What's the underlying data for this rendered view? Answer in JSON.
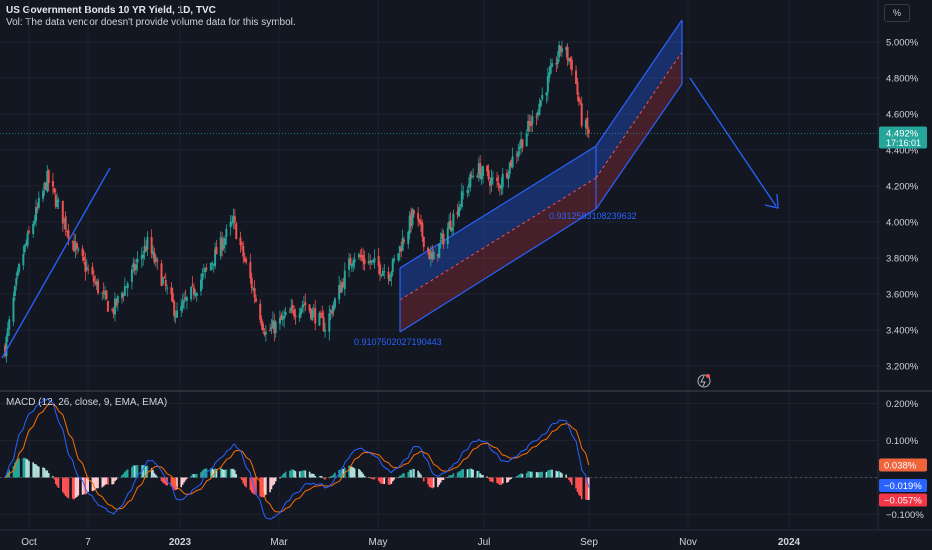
{
  "header": {
    "title": "US Government Bonds 10 YR Yield, 1D, TVC",
    "volume_note": "Vol: The data vendor doesn't provide volume data for this symbol."
  },
  "scale_button": "%",
  "price_axis": {
    "ticks": [
      "5.000%",
      "4.800%",
      "4.600%",
      "4.400%",
      "4.200%",
      "4.000%",
      "3.800%",
      "3.600%",
      "3.400%",
      "3.200%"
    ],
    "ticks_values": [
      5.0,
      4.8,
      4.6,
      4.4,
      4.2,
      4.0,
      3.8,
      3.6,
      3.4,
      3.2
    ],
    "last_price": "4.492%",
    "last_price_value": 4.492,
    "countdown": "17:16:01"
  },
  "time_axis": {
    "labels": [
      "Oct",
      "7",
      "2023",
      "Mar",
      "May",
      "Jul",
      "Sep",
      "Nov",
      "2024"
    ],
    "bold": [
      false,
      false,
      true,
      false,
      false,
      false,
      false,
      false,
      true
    ]
  },
  "macd": {
    "title": "MACD (12, 26, close, 9, EMA, EMA)",
    "ticks": [
      "0.200%",
      "0.100%",
      "−0.100%"
    ],
    "ticks_values": [
      0.2,
      0.1,
      -0.1
    ],
    "histogram_label": "0.038%",
    "macd_label": "−0.019%",
    "signal_label": "−0.057%",
    "histogram_value": 0.038,
    "macd_value": -0.019,
    "signal_value": -0.057
  },
  "annotations": {
    "channel1_label": "0.9107502027190443",
    "channel2_label": "0.9312583108239632"
  },
  "colors": {
    "background": "#131722",
    "up": "#26a69a",
    "down": "#ef5350",
    "drawing": "#2962ff",
    "macd_line": "#2962ff",
    "signal_line": "#ff6d00",
    "axis_text": "#d1d4dc"
  },
  "chart_data": [
    {
      "type": "candlestick",
      "symbol": "US Government Bonds 10 YR Yield",
      "interval": "1D",
      "ylim": [
        3.15,
        5.15
      ],
      "approx_path": [
        {
          "date": "2022-09-20",
          "close": 3.3
        },
        {
          "date": "2022-10-01",
          "close": 3.78
        },
        {
          "date": "2022-10-20",
          "close": 4.24
        },
        {
          "date": "2022-11-10",
          "close": 3.83
        },
        {
          "date": "2022-12-05",
          "close": 3.5
        },
        {
          "date": "2022-12-30",
          "close": 3.88
        },
        {
          "date": "2023-01-20",
          "close": 3.48
        },
        {
          "date": "2023-02-10",
          "close": 3.73
        },
        {
          "date": "2023-03-01",
          "close": 4.0
        },
        {
          "date": "2023-03-24",
          "close": 3.38
        },
        {
          "date": "2023-04-20",
          "close": 3.55
        },
        {
          "date": "2023-05-05",
          "close": 3.42
        },
        {
          "date": "2023-05-25",
          "close": 3.82
        },
        {
          "date": "2023-06-20",
          "close": 3.72
        },
        {
          "date": "2023-07-07",
          "close": 4.05
        },
        {
          "date": "2023-07-20",
          "close": 3.78
        },
        {
          "date": "2023-08-20",
          "close": 4.3
        },
        {
          "date": "2023-09-05",
          "close": 4.2
        },
        {
          "date": "2023-09-30",
          "close": 4.58
        },
        {
          "date": "2023-10-20",
          "close": 4.98
        },
        {
          "date": "2023-10-28",
          "close": 4.86
        },
        {
          "date": "2023-11-03",
          "close": 4.57
        },
        {
          "date": "2023-11-08",
          "close": 4.49
        }
      ]
    },
    {
      "type": "line",
      "name": "MACD (12, 26, close, 9, EMA, EMA)",
      "series": [
        {
          "name": "MACD",
          "last": -0.019
        },
        {
          "name": "Signal",
          "last": -0.057
        },
        {
          "name": "Histogram",
          "last": 0.038
        }
      ],
      "ylim": [
        -0.12,
        0.22
      ]
    }
  ]
}
